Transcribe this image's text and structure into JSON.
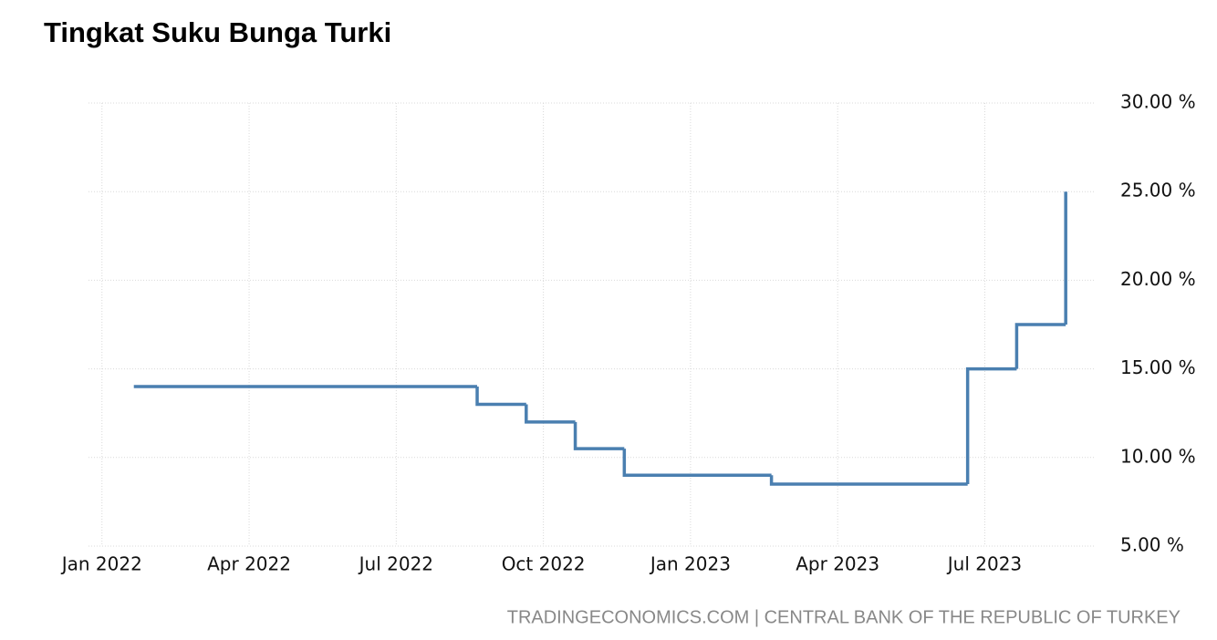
{
  "chart_data": {
    "type": "step-line",
    "title": "Tingkat Suku Bunga Turki",
    "source": "TRADINGECONOMICS.COM | CENTRAL BANK OF THE REPUBLIC OF TURKEY",
    "x": [
      "2022-01",
      "2022-08",
      "2022-09",
      "2022-10",
      "2022-11",
      "2023-02",
      "2023-06",
      "2023-07",
      "2023-08"
    ],
    "series": [
      {
        "name": "Tingkat Suku Bunga",
        "color": "#4a7fb0",
        "values": [
          14,
          13,
          12,
          10.5,
          9,
          8.5,
          15,
          17.5,
          25
        ]
      }
    ],
    "xlim": [
      "2021-12",
      "2023-09"
    ],
    "xticks": [
      {
        "value": "2022-01",
        "label": "Jan 2022"
      },
      {
        "value": "2022-04",
        "label": "Apr 2022"
      },
      {
        "value": "2022-07",
        "label": "Jul 2022"
      },
      {
        "value": "2022-10",
        "label": "Oct 2022"
      },
      {
        "value": "2023-01",
        "label": "Jan 2023"
      },
      {
        "value": "2023-04",
        "label": "Apr 2023"
      },
      {
        "value": "2023-07",
        "label": "Jul 2023"
      }
    ],
    "ylim": [
      5,
      30
    ],
    "yticks": [
      {
        "value": 5,
        "label": "5.00 %"
      },
      {
        "value": 10,
        "label": "10.00 %"
      },
      {
        "value": 15,
        "label": "15.00 %"
      },
      {
        "value": 20,
        "label": "20.00 %"
      },
      {
        "value": 25,
        "label": "25.00 %"
      },
      {
        "value": 30,
        "label": "30.00 %"
      }
    ],
    "grid": true
  }
}
